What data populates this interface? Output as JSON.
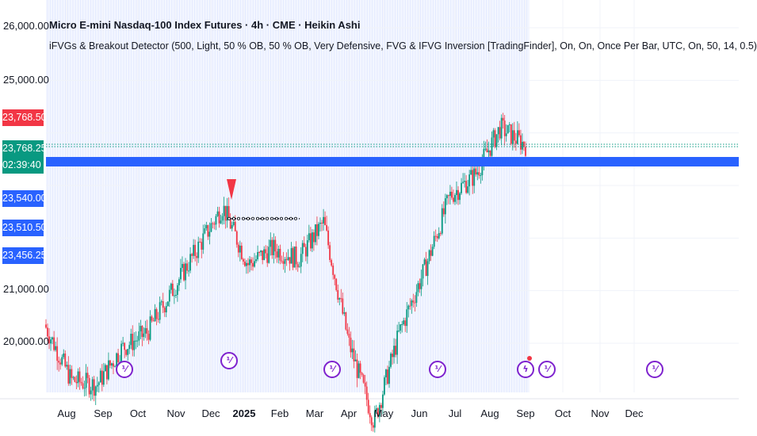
{
  "header": {
    "title": "Micro E-mini Nasdaq-100 Index Futures · 4h · CME · Heikin Ashi",
    "indicator": "iFVGs & Breakout Detector (500, Light, 50 % OB, 50 % OB, Very Defensive, FVG & IFVG Inversion [TradingFinder], On, On, Once Per Bar, UTC, On, 50, 14, 0.5)"
  },
  "price_labels": [
    {
      "text": "23,768.50",
      "color": "#f23645"
    },
    {
      "text": "23,768.25",
      "color": "#089981"
    },
    {
      "text": "02:39:40",
      "color": "#089981"
    },
    {
      "text": "23,540.00",
      "color": "#2962ff"
    },
    {
      "text": "23,510.50",
      "color": "#2962ff"
    },
    {
      "text": "23,456.25",
      "color": "#2962ff"
    }
  ],
  "events": [
    {
      "icon": "split-icon",
      "glyph": "⅟"
    },
    {
      "icon": "split-icon",
      "glyph": "⅟"
    },
    {
      "icon": "split-icon",
      "glyph": "⅟"
    },
    {
      "icon": "split-icon",
      "glyph": "⅟"
    },
    {
      "icon": "lightning-icon",
      "glyph": "ϟ"
    },
    {
      "icon": "split-icon",
      "glyph": "⅟"
    },
    {
      "icon": "split-icon",
      "glyph": "⅟"
    }
  ],
  "chart_data": {
    "type": "candlestick",
    "title": "Micro E-mini Nasdaq-100 Index Futures · 4h · CME · Heikin Ashi",
    "y_tick_labels": [
      "26,000.00",
      "25,000.00",
      "21,000.00",
      "20,000.00"
    ],
    "x_tick_labels": [
      "Aug",
      "Sep",
      "Oct",
      "Nov",
      "Dec",
      "2025",
      "Feb",
      "Mar",
      "Apr",
      "May",
      "Jun",
      "Jul",
      "Aug",
      "Sep",
      "Oct",
      "Nov",
      "Dec"
    ],
    "close_path": [
      [
        "Jul 2024",
        20300
      ],
      [
        "Aug 2024",
        19300
      ],
      [
        "Sep 2024",
        19200
      ],
      [
        "Sep 2024",
        19900
      ],
      [
        "Oct 2024",
        20200
      ],
      [
        "Nov 2024",
        21000
      ],
      [
        "Dec 2024",
        21800
      ],
      [
        "Dec 2024",
        22600
      ],
      [
        "Jan 2025",
        21500
      ],
      [
        "Jan 2025",
        21800
      ],
      [
        "Feb 2025",
        21600
      ],
      [
        "Feb 2025",
        22300
      ],
      [
        "Mar 2025",
        20000
      ],
      [
        "Apr 2025",
        18500
      ],
      [
        "May 2025",
        20200
      ],
      [
        "Jun 2025",
        21400
      ],
      [
        "Jul 2025",
        22800
      ],
      [
        "Aug 2025",
        23200
      ],
      [
        "Aug 2025",
        24100
      ],
      [
        "Sep 2025",
        23768.25
      ]
    ],
    "breakout_level": 22370,
    "breakout_marker": "sell-triangle",
    "current_price_bid": 23768.5,
    "current_price_last": 23768.25,
    "countdown": "02:39:40",
    "bar_ranges": [
      23540.0,
      23510.5,
      23456.25
    ],
    "grid": true,
    "background_highlight": "Aug 2024 – Sep 2025"
  }
}
